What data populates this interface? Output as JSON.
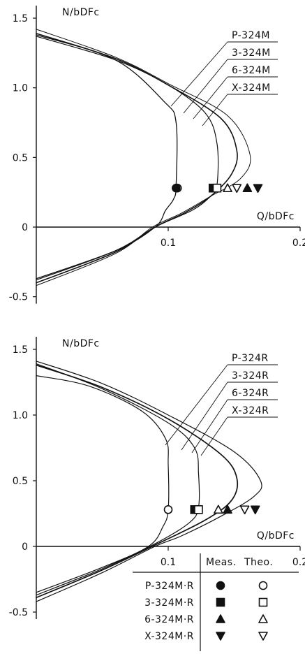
{
  "chart_data": [
    {
      "type": "line",
      "xlabel": "Q/bDFc",
      "ylabel": "N/bDFc",
      "xlim": [
        0,
        0.2
      ],
      "ylim": [
        -0.5,
        1.5
      ],
      "x_ticks": [
        "0.1",
        "0.2"
      ],
      "y_ticks": [
        "1.5",
        "1.0",
        "0.5",
        "0",
        "-0.5"
      ],
      "series": [
        {
          "name": "P-324M",
          "points": [
            [
              0.0,
              1.38
            ],
            [
              0.06,
              1.2
            ],
            [
              0.097,
              0.9
            ],
            [
              0.106,
              0.75
            ],
            [
              0.106,
              0.3
            ],
            [
              0.104,
              0.2
            ],
            [
              0.098,
              0.12
            ],
            [
              0.09,
              0.0
            ],
            [
              0.06,
              -0.17
            ],
            [
              0.0,
              -0.37
            ]
          ]
        },
        {
          "name": "3-324M",
          "points": [
            [
              0.0,
              1.37
            ],
            [
              0.06,
              1.2
            ],
            [
              0.1,
              1.02
            ],
            [
              0.128,
              0.82
            ],
            [
              0.137,
              0.6
            ],
            [
              0.137,
              0.3
            ],
            [
              0.132,
              0.22
            ],
            [
              0.118,
              0.12
            ],
            [
              0.09,
              0.0
            ],
            [
              0.06,
              -0.17
            ],
            [
              0.0,
              -0.38
            ]
          ]
        },
        {
          "name": "6-324M",
          "points": [
            [
              0.0,
              1.39
            ],
            [
              0.06,
              1.21
            ],
            [
              0.1,
              1.02
            ],
            [
              0.14,
              0.78
            ],
            [
              0.152,
              0.55
            ],
            [
              0.148,
              0.38
            ],
            [
              0.132,
              0.22
            ],
            [
              0.112,
              0.1
            ],
            [
              0.09,
              0.0
            ],
            [
              0.06,
              -0.18
            ],
            [
              0.0,
              -0.4
            ]
          ]
        },
        {
          "name": "X-324M",
          "points": [
            [
              0.0,
              1.42
            ],
            [
              0.06,
              1.22
            ],
            [
              0.1,
              1.03
            ],
            [
              0.145,
              0.8
            ],
            [
              0.162,
              0.52
            ],
            [
              0.155,
              0.35
            ],
            [
              0.132,
              0.22
            ],
            [
              0.11,
              0.1
            ],
            [
              0.088,
              0.0
            ],
            [
              0.06,
              -0.19
            ],
            [
              0.0,
              -0.42
            ]
          ]
        }
      ],
      "curve_labels": [
        "P-324M",
        "3-324M",
        "6-324M",
        "X-324M"
      ],
      "markers": [
        {
          "kind": "Theo.",
          "symbol": "circle-open",
          "x": 0.107,
          "y": 0.28
        },
        {
          "kind": "Meas.",
          "symbol": "circle-filled",
          "x": 0.106,
          "y": 0.28
        },
        {
          "kind": "Meas.",
          "symbol": "square-filled",
          "x": 0.134,
          "y": 0.28
        },
        {
          "kind": "Theo.",
          "symbol": "square-open",
          "x": 0.137,
          "y": 0.28
        },
        {
          "kind": "Theo.",
          "symbol": "triangle-up-open",
          "x": 0.145,
          "y": 0.28
        },
        {
          "kind": "Theo.",
          "symbol": "triangle-down-open",
          "x": 0.152,
          "y": 0.28
        },
        {
          "kind": "Meas.",
          "symbol": "triangle-up-filled",
          "x": 0.16,
          "y": 0.28
        },
        {
          "kind": "Meas.",
          "symbol": "triangle-down-filled",
          "x": 0.168,
          "y": 0.28
        }
      ]
    },
    {
      "type": "line",
      "xlabel": "Q/bDFc",
      "ylabel": "N/bDFc",
      "xlim": [
        0,
        0.2
      ],
      "ylim": [
        -0.5,
        1.5
      ],
      "x_ticks": [
        "0.1",
        "0.2"
      ],
      "y_ticks": [
        "1.5",
        "1.0",
        "0.5",
        "0",
        "-0.5"
      ],
      "series": [
        {
          "name": "P-324R",
          "points": [
            [
              0.0,
              1.3
            ],
            [
              0.04,
              1.22
            ],
            [
              0.08,
              1.03
            ],
            [
              0.098,
              0.82
            ],
            [
              0.1,
              0.62
            ],
            [
              0.1,
              0.28
            ],
            [
              0.096,
              0.15
            ],
            [
              0.085,
              0.0
            ],
            [
              0.05,
              -0.16
            ],
            [
              0.0,
              -0.35
            ]
          ]
        },
        {
          "name": "3-324R",
          "points": [
            [
              0.0,
              1.39
            ],
            [
              0.05,
              1.2
            ],
            [
              0.1,
              0.94
            ],
            [
              0.12,
              0.75
            ],
            [
              0.123,
              0.55
            ],
            [
              0.123,
              0.3
            ],
            [
              0.116,
              0.18
            ],
            [
              0.09,
              0.02
            ],
            [
              0.05,
              -0.17
            ],
            [
              0.0,
              -0.37
            ]
          ]
        },
        {
          "name": "6-324R",
          "points": [
            [
              0.0,
              1.38
            ],
            [
              0.05,
              1.21
            ],
            [
              0.1,
              0.97
            ],
            [
              0.14,
              0.7
            ],
            [
              0.152,
              0.52
            ],
            [
              0.148,
              0.35
            ],
            [
              0.128,
              0.2
            ],
            [
              0.092,
              0.02
            ],
            [
              0.05,
              -0.18
            ],
            [
              0.0,
              -0.39
            ]
          ]
        },
        {
          "name": "X-324R",
          "points": [
            [
              0.0,
              1.41
            ],
            [
              0.05,
              1.24
            ],
            [
              0.1,
              1.0
            ],
            [
              0.15,
              0.72
            ],
            [
              0.17,
              0.5
            ],
            [
              0.165,
              0.38
            ],
            [
              0.14,
              0.23
            ],
            [
              0.11,
              0.08
            ],
            [
              0.09,
              0.0
            ],
            [
              0.05,
              -0.2
            ],
            [
              0.0,
              -0.42
            ]
          ]
        }
      ],
      "curve_labels": [
        "P-324R",
        "3-324R",
        "6-324R",
        "X-324R"
      ],
      "markers": [
        {
          "kind": "Theo.",
          "symbol": "circle-open",
          "x": 0.1,
          "y": 0.28
        },
        {
          "kind": "Meas.",
          "symbol": "square-filled",
          "x": 0.12,
          "y": 0.28
        },
        {
          "kind": "Theo.",
          "symbol": "square-open",
          "x": 0.123,
          "y": 0.28
        },
        {
          "kind": "Theo.",
          "symbol": "triangle-up-open",
          "x": 0.138,
          "y": 0.28
        },
        {
          "kind": "Meas.",
          "symbol": "triangle-up-filled",
          "x": 0.145,
          "y": 0.28
        },
        {
          "kind": "Theo.",
          "symbol": "triangle-down-open",
          "x": 0.158,
          "y": 0.28
        },
        {
          "kind": "Meas.",
          "symbol": "triangle-down-filled",
          "x": 0.166,
          "y": 0.28
        }
      ],
      "legend": {
        "placement": "bottom-right",
        "headers": [
          "Meas.",
          "Theo."
        ],
        "rows": [
          {
            "label": "P-324M·R",
            "meas": "circle-filled",
            "theo": "circle-open"
          },
          {
            "label": "3-324M·R",
            "meas": "square-filled",
            "theo": "square-open"
          },
          {
            "label": "6-324M·R",
            "meas": "triangle-up-filled",
            "theo": "triangle-up-open"
          },
          {
            "label": "X-324M·R",
            "meas": "triangle-down-filled",
            "theo": "triangle-down-open"
          }
        ]
      }
    }
  ]
}
